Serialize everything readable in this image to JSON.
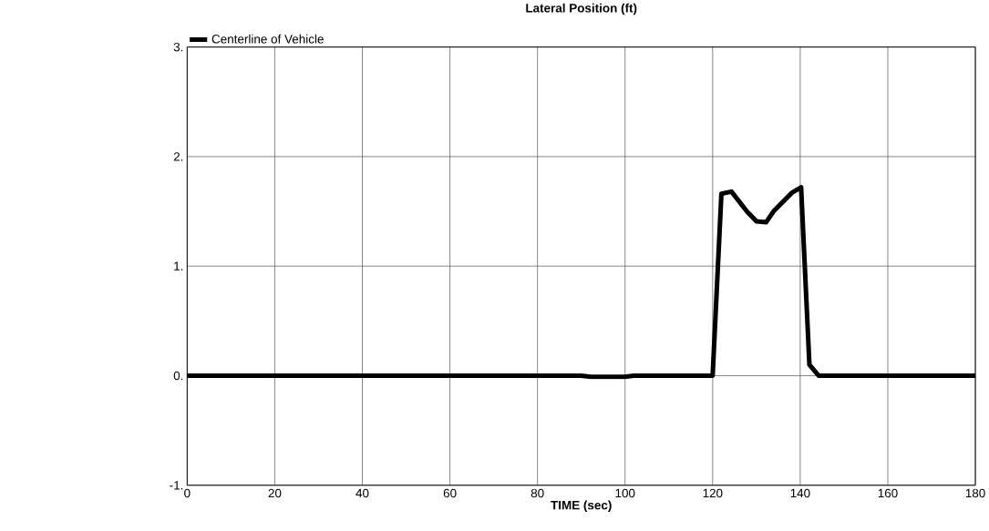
{
  "chart_data": {
    "type": "line",
    "title": "Lateral Position (ft)",
    "xlabel": "TIME (sec)",
    "xlim": [
      0,
      180
    ],
    "ylim": [
      -1,
      3
    ],
    "xticks": [
      0,
      20,
      40,
      60,
      80,
      100,
      120,
      140,
      160,
      180
    ],
    "yticks": [
      {
        "value": -1,
        "label": "-1."
      },
      {
        "value": 0,
        "label": "0."
      },
      {
        "value": 1,
        "label": "1."
      },
      {
        "value": 2,
        "label": "2."
      },
      {
        "value": 3,
        "label": "3."
      }
    ],
    "grid": true,
    "legend": "top left",
    "series": [
      {
        "name": "Centerline of Vehicle",
        "color": "#000000",
        "x": [
          0,
          90,
          92.3,
          99.8,
          102,
          120,
          122,
          124.3,
          127.8,
          130,
          132.2,
          133.9,
          138.1,
          140.2,
          142.1,
          144.2,
          180
        ],
        "values": [
          0,
          0,
          -0.01,
          -0.01,
          0,
          0,
          1.66,
          1.68,
          1.5,
          1.41,
          1.4,
          1.5,
          1.67,
          1.72,
          0.1,
          0,
          0
        ]
      }
    ]
  }
}
